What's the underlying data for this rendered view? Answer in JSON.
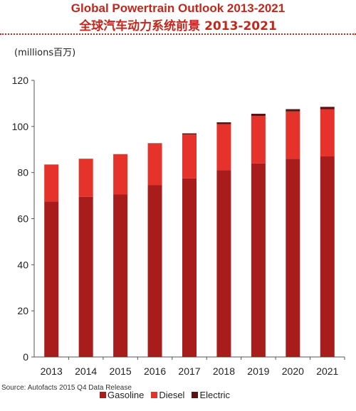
{
  "title_en": "Global Powertrain Outlook 2013-2021",
  "title_cn": "全球汽车动力系统前景 2013-2021",
  "source": "Source: Autofacts 2015 Q4 Data Release",
  "chart_data": {
    "type": "bar",
    "stacked": true,
    "ylabel": "(millions百万)",
    "ylim": [
      0,
      120
    ],
    "yticks": [
      0,
      20,
      40,
      60,
      80,
      100,
      120
    ],
    "grid": false,
    "legend_position": "bottom",
    "categories": [
      "2013",
      "2014",
      "2015",
      "2016",
      "2017",
      "2018",
      "2019",
      "2020",
      "2021"
    ],
    "series": [
      {
        "name": "Gasoline",
        "color": "#a81c1c",
        "values": [
          67.5,
          69.5,
          70.5,
          74.5,
          77.5,
          81,
          84,
          86,
          87
        ]
      },
      {
        "name": "Diesel",
        "color": "#e5322b",
        "values": [
          16,
          16.5,
          17.5,
          18,
          19,
          20,
          20.5,
          20.5,
          20.5
        ]
      },
      {
        "name": "Electric",
        "color": "#5a1212",
        "values": [
          0,
          0,
          0,
          0.2,
          0.5,
          0.8,
          1,
          1,
          1
        ]
      }
    ]
  }
}
